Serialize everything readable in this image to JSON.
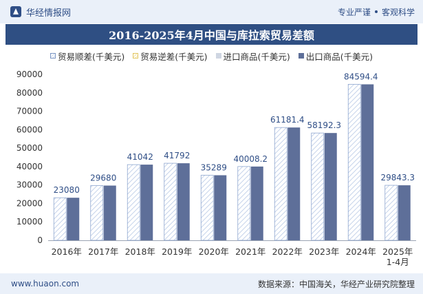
{
  "header": {
    "brand": "华经情报网",
    "slogan_left": "专业严谨",
    "slogan_right": "客观科学"
  },
  "chart_data": {
    "type": "bar",
    "title": "2016-2025年4月中国与库拉索贸易差额",
    "categories": [
      "2016年",
      "2017年",
      "2018年",
      "2019年",
      "2020年",
      "2021年",
      "2022年",
      "2023年",
      "2024年",
      "2025年\n1-4月"
    ],
    "series": [
      {
        "name": "贸易顺差(千美元)",
        "values": [
          23080,
          29680,
          41042,
          41792,
          35289,
          40008.2,
          61181.4,
          58192.3,
          84594.4,
          29843.3
        ],
        "labels": [
          "23080",
          "29680",
          "41042",
          "41792",
          "35289",
          "40008.2",
          "61181.4",
          "58192.3",
          "84594.4",
          "29843.3"
        ],
        "color": "#cfdbee"
      },
      {
        "name": "贸易逆差(千美元)",
        "values": [
          0,
          0,
          0,
          0,
          0,
          0,
          0,
          0,
          0,
          0
        ],
        "color": "#f3e5a8"
      },
      {
        "name": "进口商品(千美元)",
        "values": [
          0,
          0,
          0,
          0,
          0,
          0,
          0,
          0,
          0,
          0
        ],
        "color": "#cfd6e2"
      },
      {
        "name": "出口商品(千美元)",
        "values": [
          23080,
          29680,
          41042,
          41792,
          35289,
          40008.2,
          61181.4,
          58192.3,
          84594.4,
          29843.3
        ],
        "color": "#5e6f99"
      }
    ],
    "yticks": [
      0,
      10000,
      20000,
      30000,
      40000,
      50000,
      60000,
      70000,
      80000,
      90000
    ],
    "ylim": [
      0,
      90000
    ],
    "grid": false,
    "legend": "top"
  },
  "footer": {
    "url": "www.huaon.com",
    "source": "数据来源：中国海关，华经产业研究院整理"
  }
}
